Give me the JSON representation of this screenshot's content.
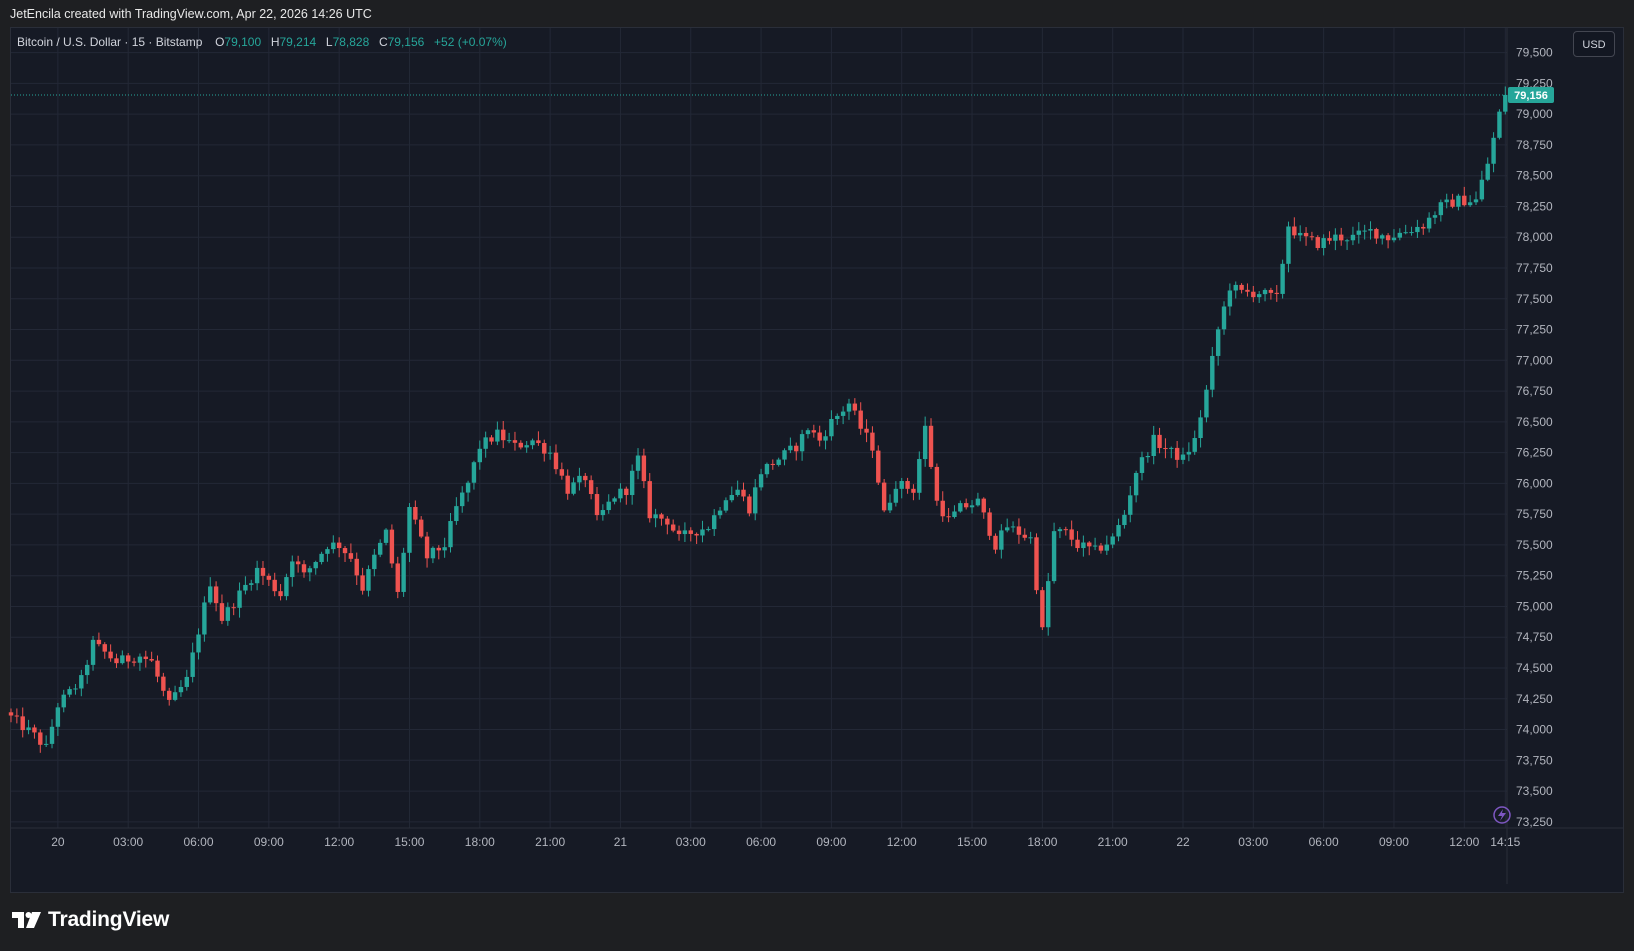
{
  "header": {
    "credit": "JetEncila created with TradingView.com, Apr 22, 2026 14:26 UTC"
  },
  "legend": {
    "symbol": "Bitcoin / U.S. Dollar · 15 · Bitstamp",
    "o_label": "O",
    "o_value": "79,100",
    "h_label": "H",
    "h_value": "79,214",
    "l_label": "L",
    "l_value": "78,828",
    "c_label": "C",
    "c_value": "79,156",
    "change": "+52 (+0.07%)"
  },
  "currency_button": "USD",
  "last_price_label": "79,156",
  "footer": {
    "brand": "TradingView"
  },
  "colors": {
    "up": "#26a69a",
    "down": "#ef5350",
    "background": "#161a25",
    "grid": "#232836",
    "axis_text": "#b2b5be"
  },
  "chart_data": {
    "type": "candlestick",
    "title": "Bitcoin / U.S. Dollar · 15 · Bitstamp",
    "ylim": [
      73200,
      79700
    ],
    "y_ticks": [
      73250,
      73500,
      73750,
      74000,
      74250,
      74500,
      74750,
      75000,
      75250,
      75500,
      75750,
      76000,
      76250,
      76500,
      76750,
      77000,
      77250,
      77500,
      77750,
      78000,
      78250,
      78500,
      78750,
      79000,
      79250,
      79500
    ],
    "y_tick_labels": [
      "73,250",
      "73,500",
      "73,750",
      "74,000",
      "74,250",
      "74,500",
      "74,750",
      "75,000",
      "75,250",
      "75,500",
      "75,750",
      "76,000",
      "76,250",
      "76,500",
      "76,750",
      "77,000",
      "77,250",
      "77,500",
      "77,750",
      "78,000",
      "78,250",
      "78,500",
      "78,750",
      "79,000",
      "79,250",
      "79,500"
    ],
    "x_ticks": [
      {
        "label": "20",
        "index": 8
      },
      {
        "label": "03:00",
        "index": 20
      },
      {
        "label": "06:00",
        "index": 32
      },
      {
        "label": "09:00",
        "index": 44
      },
      {
        "label": "12:00",
        "index": 56
      },
      {
        "label": "15:00",
        "index": 68
      },
      {
        "label": "18:00",
        "index": 80
      },
      {
        "label": "21:00",
        "index": 92
      },
      {
        "label": "21",
        "index": 104
      },
      {
        "label": "03:00",
        "index": 116
      },
      {
        "label": "06:00",
        "index": 128
      },
      {
        "label": "09:00",
        "index": 140
      },
      {
        "label": "12:00",
        "index": 152
      },
      {
        "label": "15:00",
        "index": 164
      },
      {
        "label": "18:00",
        "index": 176
      },
      {
        "label": "21:00",
        "index": 188
      },
      {
        "label": "22",
        "index": 200
      },
      {
        "label": "03:00",
        "index": 212
      },
      {
        "label": "06:00",
        "index": 224
      },
      {
        "label": "09:00",
        "index": 236
      },
      {
        "label": "12:00",
        "index": 248
      },
      {
        "label": "14:15",
        "index": 255
      }
    ],
    "last_price": 79156,
    "close_keyframes": [
      [
        0,
        74100
      ],
      [
        4,
        73950
      ],
      [
        6,
        73850
      ],
      [
        8,
        74200
      ],
      [
        12,
        74400
      ],
      [
        14,
        74700
      ],
      [
        18,
        74550
      ],
      [
        22,
        74600
      ],
      [
        24,
        74550
      ],
      [
        26,
        74300
      ],
      [
        27,
        74200
      ],
      [
        30,
        74400
      ],
      [
        32,
        74800
      ],
      [
        34,
        75200
      ],
      [
        36,
        74900
      ],
      [
        39,
        75100
      ],
      [
        42,
        75300
      ],
      [
        46,
        75100
      ],
      [
        48,
        75400
      ],
      [
        50,
        75250
      ],
      [
        54,
        75500
      ],
      [
        56,
        75500
      ],
      [
        58,
        75400
      ],
      [
        60,
        75150
      ],
      [
        62,
        75400
      ],
      [
        64,
        75600
      ],
      [
        66,
        75100
      ],
      [
        68,
        75800
      ],
      [
        71,
        75400
      ],
      [
        74,
        75500
      ],
      [
        76,
        75800
      ],
      [
        78,
        76000
      ],
      [
        80,
        76300
      ],
      [
        83,
        76400
      ],
      [
        86,
        76300
      ],
      [
        89,
        76350
      ],
      [
        92,
        76250
      ],
      [
        95,
        75950
      ],
      [
        98,
        76050
      ],
      [
        100,
        75700
      ],
      [
        103,
        75900
      ],
      [
        105,
        75950
      ],
      [
        107,
        76200
      ],
      [
        109,
        75750
      ],
      [
        112,
        75700
      ],
      [
        114,
        75550
      ],
      [
        116,
        75600
      ],
      [
        119,
        75650
      ],
      [
        122,
        75900
      ],
      [
        124,
        75950
      ],
      [
        126,
        75800
      ],
      [
        128,
        76100
      ],
      [
        131,
        76200
      ],
      [
        134,
        76300
      ],
      [
        136,
        76450
      ],
      [
        138,
        76350
      ],
      [
        140,
        76500
      ],
      [
        143,
        76650
      ],
      [
        145,
        76450
      ],
      [
        147,
        76300
      ],
      [
        149,
        75750
      ],
      [
        151,
        76000
      ],
      [
        154,
        75950
      ],
      [
        156,
        76450
      ],
      [
        158,
        75850
      ],
      [
        160,
        75700
      ],
      [
        162,
        75800
      ],
      [
        165,
        75850
      ],
      [
        168,
        75500
      ],
      [
        170,
        75650
      ],
      [
        172,
        75600
      ],
      [
        174,
        75550
      ],
      [
        176,
        74800
      ],
      [
        178,
        75600
      ],
      [
        180,
        75600
      ],
      [
        182,
        75500
      ],
      [
        185,
        75450
      ],
      [
        188,
        75550
      ],
      [
        190,
        75750
      ],
      [
        192,
        76100
      ],
      [
        195,
        76350
      ],
      [
        198,
        76250
      ],
      [
        200,
        76200
      ],
      [
        202,
        76350
      ],
      [
        204,
        76750
      ],
      [
        206,
        77250
      ],
      [
        208,
        77600
      ],
      [
        210,
        77550
      ],
      [
        213,
        77550
      ],
      [
        216,
        77500
      ],
      [
        218,
        78100
      ],
      [
        220,
        78000
      ],
      [
        223,
        77950
      ],
      [
        226,
        78000
      ],
      [
        229,
        78000
      ],
      [
        232,
        78050
      ],
      [
        235,
        78000
      ],
      [
        238,
        78050
      ],
      [
        241,
        78100
      ],
      [
        244,
        78250
      ],
      [
        247,
        78300
      ],
      [
        250,
        78300
      ],
      [
        252,
        78600
      ],
      [
        254,
        79000
      ],
      [
        255,
        79156
      ]
    ],
    "candle_count": 256
  }
}
